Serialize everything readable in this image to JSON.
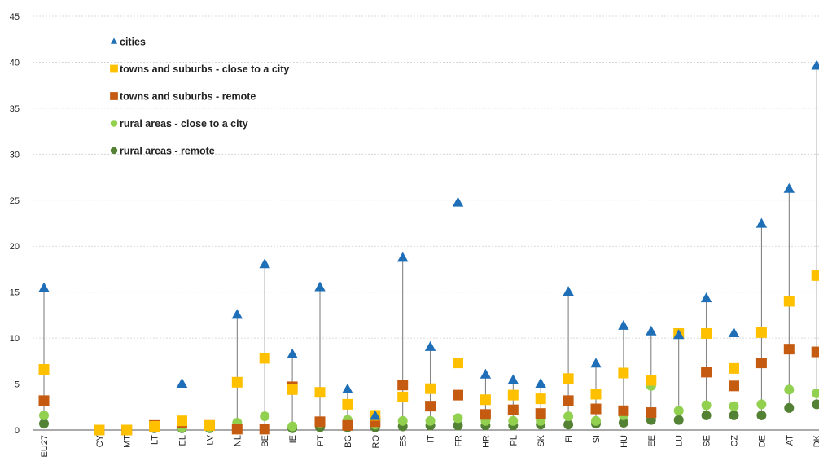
{
  "chart_data": {
    "type": "scatter",
    "title": "",
    "xlabel": "",
    "ylabel": "",
    "ylim": [
      0,
      45
    ],
    "yticks": [
      0,
      5,
      10,
      15,
      20,
      25,
      30,
      35,
      40,
      45
    ],
    "grid": true,
    "legend_position": "top-left",
    "categories": [
      "EU27",
      "",
      "CY",
      "MT",
      "LT",
      "EL",
      "LV",
      "NL",
      "BE",
      "IE",
      "PT",
      "BG",
      "RO",
      "ES",
      "IT",
      "FR",
      "HR",
      "PL",
      "SK",
      "FI",
      "SI",
      "HU",
      "EE",
      "LU",
      "SE",
      "CZ",
      "DE",
      "AT",
      "DK"
    ],
    "series": [
      {
        "name": "cities",
        "marker": "triangle",
        "color": "#1f6fb8",
        "values": [
          15.4,
          null,
          null,
          null,
          null,
          5.0,
          null,
          12.5,
          18.0,
          8.2,
          15.5,
          4.4,
          1.5,
          18.7,
          9.0,
          24.7,
          6.0,
          5.4,
          5.0,
          15.0,
          7.2,
          11.3,
          10.7,
          10.3,
          14.3,
          10.5,
          22.4,
          26.2,
          39.6
        ]
      },
      {
        "name": "towns and suburbs - close to a city",
        "marker": "square",
        "color": "#ffc000",
        "values": [
          6.6,
          null,
          0.0,
          0.0,
          0.4,
          1.0,
          0.5,
          5.2,
          7.8,
          4.4,
          4.1,
          2.8,
          1.6,
          3.6,
          4.5,
          7.3,
          3.3,
          3.8,
          3.4,
          5.6,
          3.9,
          6.2,
          5.4,
          10.5,
          10.5,
          6.7,
          10.6,
          14.0,
          16.8
        ]
      },
      {
        "name": "towns and suburbs - remote",
        "marker": "square",
        "color": "#c55a11",
        "values": [
          3.2,
          null,
          0.0,
          0.0,
          0.5,
          0.8,
          0.5,
          0.1,
          0.1,
          4.7,
          0.9,
          0.5,
          0.9,
          4.9,
          2.6,
          3.8,
          1.7,
          2.2,
          1.8,
          3.2,
          2.3,
          2.1,
          1.9,
          null,
          6.3,
          4.8,
          7.3,
          8.8,
          8.5
        ]
      },
      {
        "name": "rural areas - close to a city",
        "marker": "circle",
        "color": "#92d050",
        "values": [
          1.6,
          null,
          0.0,
          0.0,
          0.3,
          0.3,
          0.3,
          0.8,
          1.5,
          0.4,
          0.8,
          1.1,
          0.6,
          1.0,
          1.0,
          1.3,
          1.0,
          1.0,
          1.0,
          1.5,
          1.0,
          1.6,
          4.8,
          2.1,
          2.7,
          2.6,
          2.8,
          4.4,
          4.0
        ]
      },
      {
        "name": "rural areas - remote",
        "marker": "circle",
        "color": "#548235",
        "values": [
          0.7,
          null,
          0.0,
          0.0,
          0.2,
          0.2,
          0.2,
          0.1,
          0.1,
          0.2,
          0.3,
          0.3,
          0.3,
          0.4,
          0.5,
          0.5,
          0.5,
          0.5,
          0.6,
          0.6,
          0.7,
          0.8,
          1.1,
          1.1,
          1.6,
          1.6,
          1.6,
          2.4,
          2.8
        ]
      }
    ]
  }
}
